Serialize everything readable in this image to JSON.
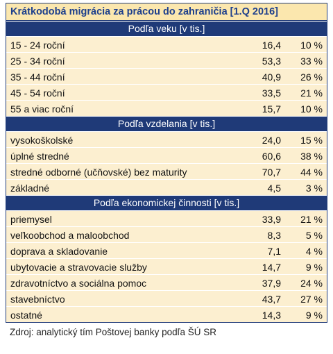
{
  "title": "Krátkodobá migrácia za prácou do zahraničia [1.Q 2016]",
  "sections": [
    {
      "title": "Podľa veku  [v tis.]",
      "rows": [
        [
          "15 - 24 roční",
          "16,4",
          "10 %"
        ],
        [
          "25 - 34 roční",
          "53,3",
          "33 %"
        ],
        [
          "35 - 44 roční",
          "40,9",
          "26 %"
        ],
        [
          "45 - 54 roční",
          "33,5",
          "21 %"
        ],
        [
          "55 a viac roční",
          "15,7",
          "10 %"
        ]
      ]
    },
    {
      "title": "Podľa vzdelania [v tis.]",
      "rows": [
        [
          "vysokoškolské",
          "24,0",
          "15 %"
        ],
        [
          "úplné stredné",
          "60,6",
          "38 %"
        ],
        [
          "stredné odborné (učňovské) bez maturity",
          "70,7",
          "44 %"
        ],
        [
          "základné",
          "4,5",
          "3 %"
        ]
      ]
    },
    {
      "title": "Podľa ekonomickej činnosti [v tis.]",
      "rows": [
        [
          "priemysel",
          "33,9",
          "21 %"
        ],
        [
          "veľkoobchod a maloobchod",
          "8,3",
          "5 %"
        ],
        [
          "doprava a skladovanie",
          "7,1",
          "4 %"
        ],
        [
          "ubytovacie a stravovacie služby",
          "14,7",
          "9 %"
        ],
        [
          "zdravotníctvo a sociálna pomoc",
          "37,9",
          "24 %"
        ],
        [
          "stavebníctvo",
          "43,7",
          "27 %"
        ],
        [
          "ostatné",
          "14,3",
          "9 %"
        ]
      ]
    }
  ],
  "source": "Zdroj: analytický tím Poštovej banky podľa ŠÚ SR"
}
